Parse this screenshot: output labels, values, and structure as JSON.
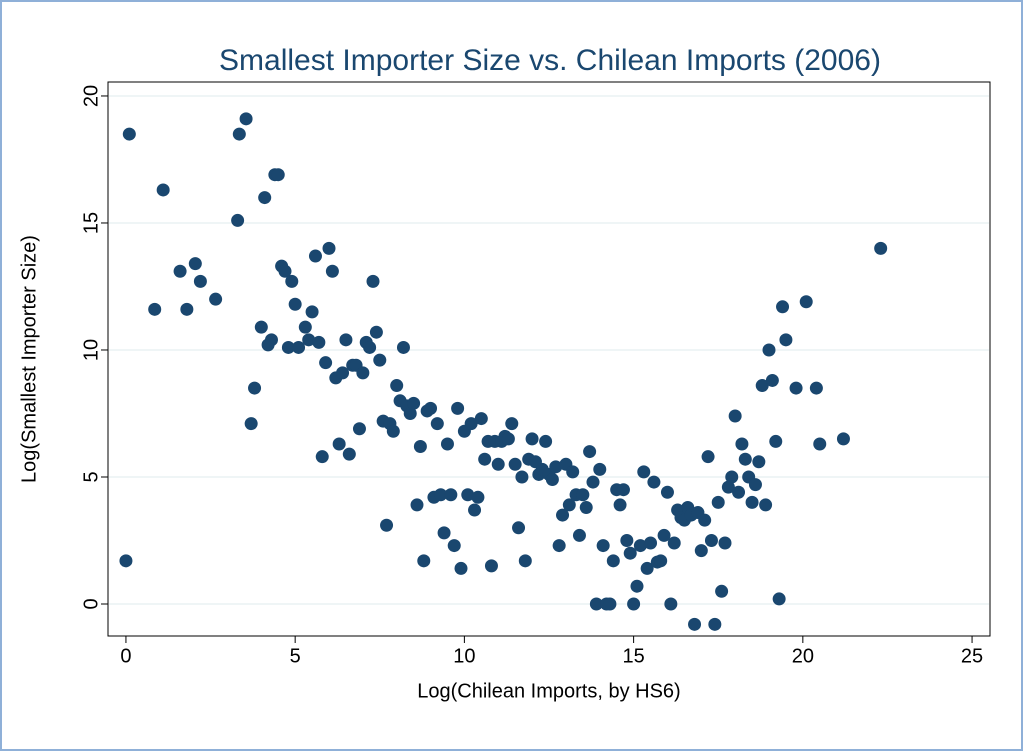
{
  "chart_data": {
    "type": "scatter",
    "title": "Smallest Importer Size vs. Chilean Imports (2006)",
    "xlabel": "Log(Chilean Imports, by HS6)",
    "ylabel": "Log(Smallest Importer Size)",
    "color": "#1a476f",
    "grid": true,
    "xlim": [
      -0.53,
      25.53
    ],
    "ylim": [
      -1.26,
      20.55
    ],
    "xticks": [
      0,
      5,
      10,
      15,
      20,
      25
    ],
    "yticks": [
      0,
      5,
      10,
      15,
      20
    ],
    "x": [
      0,
      0.1,
      1.1,
      0.85,
      1.6,
      1.8,
      2.05,
      2.2,
      2.65,
      3.3,
      3.35,
      3.55,
      3.7,
      3.8,
      4.0,
      4.1,
      4.2,
      4.3,
      4.4,
      4.5,
      4.6,
      4.7,
      4.8,
      4.9,
      5.0,
      5.1,
      5.3,
      5.4,
      5.5,
      5.6,
      5.7,
      5.8,
      5.9,
      6.0,
      6.1,
      6.2,
      6.3,
      6.4,
      6.5,
      6.6,
      6.7,
      6.8,
      6.9,
      7.0,
      7.1,
      7.2,
      7.3,
      7.4,
      7.5,
      7.6,
      7.7,
      7.8,
      7.9,
      8.0,
      8.1,
      8.2,
      8.3,
      8.4,
      8.5,
      8.6,
      8.7,
      8.8,
      8.9,
      9.0,
      9.1,
      9.2,
      9.3,
      9.4,
      9.5,
      9.6,
      9.7,
      9.8,
      9.9,
      10.0,
      10.1,
      10.2,
      10.3,
      10.4,
      10.5,
      10.6,
      10.7,
      10.8,
      10.9,
      11.0,
      11.1,
      11.2,
      11.3,
      11.4,
      11.5,
      11.6,
      11.7,
      11.8,
      11.9,
      12.0,
      12.1,
      12.2,
      12.3,
      12.4,
      12.5,
      12.6,
      12.7,
      12.8,
      12.9,
      13.0,
      13.1,
      13.2,
      13.3,
      13.4,
      13.5,
      13.6,
      13.7,
      13.8,
      13.9,
      14.0,
      14.1,
      14.2,
      14.3,
      14.4,
      14.5,
      14.6,
      14.7,
      14.8,
      14.9,
      15.0,
      15.1,
      15.2,
      15.3,
      15.4,
      15.5,
      15.6,
      15.7,
      15.8,
      15.9,
      16.0,
      16.1,
      16.2,
      16.3,
      16.4,
      16.5,
      16.6,
      16.7,
      16.8,
      16.9,
      17.0,
      17.1,
      17.2,
      17.3,
      17.4,
      17.5,
      17.6,
      17.7,
      17.8,
      17.9,
      18.0,
      18.1,
      18.2,
      18.3,
      18.4,
      18.5,
      18.6,
      18.7,
      18.8,
      18.9,
      19.0,
      19.1,
      19.2,
      19.3,
      19.4,
      19.5,
      19.8,
      20.1,
      20.4,
      20.5,
      21.2,
      22.3
    ],
    "values": [
      1.7,
      18.5,
      16.3,
      11.6,
      13.1,
      11.6,
      13.4,
      12.7,
      12.0,
      15.1,
      18.5,
      19.1,
      7.1,
      8.5,
      10.9,
      16.0,
      10.2,
      10.4,
      16.9,
      16.9,
      13.3,
      13.1,
      10.1,
      12.7,
      11.8,
      10.1,
      10.9,
      10.4,
      11.5,
      13.7,
      10.3,
      5.8,
      9.5,
      14.0,
      13.1,
      8.9,
      6.3,
      9.1,
      10.4,
      5.9,
      9.4,
      9.4,
      6.9,
      9.1,
      10.3,
      10.1,
      12.7,
      10.7,
      9.6,
      7.2,
      3.1,
      7.1,
      6.8,
      8.6,
      8.0,
      10.1,
      7.8,
      7.5,
      7.9,
      3.9,
      6.2,
      1.7,
      7.6,
      7.7,
      4.2,
      7.1,
      4.3,
      2.8,
      6.3,
      4.3,
      2.3,
      7.7,
      1.4,
      6.8,
      4.3,
      7.1,
      3.7,
      4.2,
      7.3,
      5.7,
      6.4,
      1.5,
      6.4,
      5.5,
      6.4,
      6.6,
      6.5,
      7.1,
      5.5,
      3.0,
      5.0,
      1.7,
      5.7,
      6.5,
      5.6,
      5.1,
      5.3,
      6.4,
      5.1,
      4.9,
      5.4,
      2.3,
      3.5,
      5.5,
      3.9,
      5.2,
      4.3,
      2.7,
      4.3,
      3.8,
      6.0,
      4.8,
      0,
      5.3,
      2.3,
      0,
      0,
      1.7,
      4.5,
      3.9,
      4.5,
      2.5,
      2.0,
      0,
      0.7,
      2.3,
      5.2,
      1.4,
      2.4,
      4.8,
      1.65,
      1.7,
      2.7,
      4.4,
      0,
      2.4,
      3.7,
      3.4,
      3.3,
      3.8,
      3.5,
      -0.8,
      3.6,
      2.1,
      3.3,
      5.8,
      2.5,
      -0.8,
      4.0,
      0.5,
      2.4,
      4.6,
      5.0,
      7.4,
      4.4,
      6.3,
      5.7,
      5.0,
      4.0,
      4.7,
      5.6,
      8.6,
      3.9,
      10.0,
      8.8,
      6.4,
      0.2,
      11.7,
      10.4,
      8.5,
      11.9,
      8.5,
      6.3,
      6.5,
      14.0
    ]
  }
}
